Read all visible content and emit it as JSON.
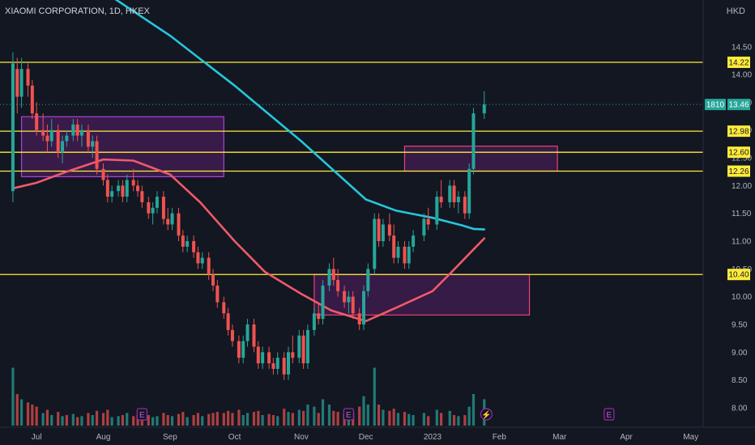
{
  "header": {
    "title": "XIAOMI CORPORATION, 1D, HKEX",
    "currency": "HKD"
  },
  "chart_data": {
    "type": "candlestick",
    "ylim": [
      7.65,
      15.05
    ],
    "y_ticks": [
      "14.50",
      "14.00",
      "13.50",
      "13.00",
      "12.50",
      "12.00",
      "11.50",
      "11.00",
      "10.50",
      "10.00",
      "9.50",
      "9.00",
      "8.50",
      "8.00"
    ],
    "x_ticks": [
      "Jul",
      "Aug",
      "Sep",
      "Oct",
      "Nov",
      "Dec",
      "2023",
      "Feb",
      "Mar",
      "Apr",
      "May"
    ],
    "horizontal_levels": [
      {
        "value": 14.22,
        "label": "14.22"
      },
      {
        "value": 12.98,
        "label": "12.98"
      },
      {
        "value": 12.6,
        "label": "12.60"
      },
      {
        "value": 12.26,
        "label": "12.26"
      },
      {
        "value": 10.4,
        "label": "10.40"
      }
    ],
    "last_price": {
      "value": 13.46,
      "label": "13.46",
      "countdown": "1810"
    },
    "zones": [
      {
        "from": "2022-06-24",
        "to": "2022-09-26",
        "high": 13.24,
        "low": 12.16,
        "color": "purple"
      },
      {
        "from": "2022-11-07",
        "to": "2023-02-15",
        "high": 10.4,
        "low": 9.67,
        "color": "pink"
      },
      {
        "from": "2022-12-19",
        "to": "2023-02-28",
        "high": 12.71,
        "low": 12.26,
        "color": "pink"
      }
    ],
    "moving_averages": [
      {
        "color": "#26c6da",
        "points": [
          [
            "2022-07-01",
            16.3
          ],
          [
            "2022-08-01",
            15.5
          ],
          [
            "2022-09-01",
            14.7
          ],
          [
            "2022-10-01",
            13.8
          ],
          [
            "2022-11-01",
            12.8
          ],
          [
            "2022-12-01",
            11.75
          ],
          [
            "2022-12-15",
            11.55
          ],
          [
            "2023-01-01",
            11.42
          ],
          [
            "2023-01-15",
            11.28
          ],
          [
            "2023-01-20",
            11.22
          ],
          [
            "2023-01-25",
            11.21
          ]
        ]
      },
      {
        "color": "#f05a6a",
        "points": [
          [
            "2022-06-20",
            11.95
          ],
          [
            "2022-07-01",
            12.05
          ],
          [
            "2022-07-15",
            12.25
          ],
          [
            "2022-08-01",
            12.47
          ],
          [
            "2022-08-15",
            12.45
          ],
          [
            "2022-09-01",
            12.2
          ],
          [
            "2022-09-15",
            11.7
          ],
          [
            "2022-10-01",
            11.0
          ],
          [
            "2022-10-15",
            10.45
          ],
          [
            "2022-11-01",
            10.05
          ],
          [
            "2022-11-15",
            9.75
          ],
          [
            "2022-12-01",
            9.56
          ],
          [
            "2022-12-15",
            9.8
          ],
          [
            "2023-01-01",
            10.1
          ],
          [
            "2023-01-10",
            10.45
          ],
          [
            "2023-01-20",
            10.85
          ],
          [
            "2023-01-25",
            11.05
          ]
        ]
      }
    ],
    "candles": [
      [
        "2022-06-20",
        11.9,
        14.4,
        11.7,
        14.2
      ],
      [
        "2022-06-22",
        14.1,
        14.3,
        13.3,
        13.6
      ],
      [
        "2022-06-24",
        13.6,
        14.3,
        13.4,
        14.1
      ],
      [
        "2022-06-27",
        14.1,
        14.2,
        13.6,
        13.8
      ],
      [
        "2022-06-29",
        13.8,
        13.9,
        13.2,
        13.3
      ],
      [
        "2022-07-01",
        13.3,
        13.5,
        12.9,
        13.0
      ],
      [
        "2022-07-04",
        13.0,
        13.3,
        12.8,
        12.9
      ],
      [
        "2022-07-06",
        12.9,
        13.1,
        12.6,
        12.8
      ],
      [
        "2022-07-08",
        12.8,
        13.2,
        12.7,
        13.0
      ],
      [
        "2022-07-11",
        13.0,
        13.1,
        12.5,
        12.6
      ],
      [
        "2022-07-13",
        12.6,
        12.9,
        12.4,
        12.8
      ],
      [
        "2022-07-15",
        12.8,
        13.0,
        12.7,
        12.9
      ],
      [
        "2022-07-18",
        12.9,
        13.2,
        12.8,
        13.1
      ],
      [
        "2022-07-20",
        13.1,
        13.2,
        12.8,
        12.9
      ],
      [
        "2022-07-22",
        12.9,
        13.1,
        12.7,
        13.0
      ],
      [
        "2022-07-25",
        13.0,
        13.1,
        12.6,
        12.7
      ],
      [
        "2022-07-27",
        12.7,
        12.9,
        12.5,
        12.8
      ],
      [
        "2022-07-29",
        12.8,
        12.9,
        12.2,
        12.3
      ],
      [
        "2022-08-01",
        12.3,
        12.4,
        12.0,
        12.1
      ],
      [
        "2022-08-03",
        12.1,
        12.2,
        11.7,
        11.8
      ],
      [
        "2022-08-05",
        11.8,
        12.0,
        11.7,
        11.9
      ],
      [
        "2022-08-08",
        11.9,
        12.1,
        11.8,
        12.0
      ],
      [
        "2022-08-10",
        12.0,
        12.1,
        11.7,
        11.8
      ],
      [
        "2022-08-12",
        11.8,
        12.2,
        11.7,
        12.1
      ],
      [
        "2022-08-15",
        12.1,
        12.3,
        11.9,
        12.0
      ],
      [
        "2022-08-17",
        12.0,
        12.1,
        11.8,
        11.9
      ],
      [
        "2022-08-19",
        11.9,
        12.0,
        11.6,
        11.7
      ],
      [
        "2022-08-22",
        11.7,
        11.8,
        11.4,
        11.5
      ],
      [
        "2022-08-24",
        11.5,
        11.7,
        11.3,
        11.6
      ],
      [
        "2022-08-26",
        11.6,
        11.9,
        11.5,
        11.8
      ],
      [
        "2022-08-29",
        11.8,
        11.9,
        11.3,
        11.4
      ],
      [
        "2022-08-31",
        11.4,
        11.6,
        11.2,
        11.3
      ],
      [
        "2022-09-02",
        11.3,
        11.6,
        11.2,
        11.5
      ],
      [
        "2022-09-05",
        11.5,
        11.6,
        11.0,
        11.1
      ],
      [
        "2022-09-07",
        11.1,
        11.2,
        10.8,
        10.9
      ],
      [
        "2022-09-09",
        10.9,
        11.1,
        10.8,
        11.0
      ],
      [
        "2022-09-12",
        11.0,
        11.1,
        10.7,
        10.8
      ],
      [
        "2022-09-14",
        10.8,
        10.9,
        10.5,
        10.6
      ],
      [
        "2022-09-16",
        10.6,
        10.8,
        10.5,
        10.7
      ],
      [
        "2022-09-19",
        10.7,
        10.8,
        10.3,
        10.4
      ],
      [
        "2022-09-21",
        10.4,
        10.5,
        10.1,
        10.2
      ],
      [
        "2022-09-23",
        10.2,
        10.3,
        9.8,
        9.9
      ],
      [
        "2022-09-26",
        9.9,
        10.0,
        9.6,
        9.7
      ],
      [
        "2022-09-28",
        9.7,
        9.8,
        9.3,
        9.4
      ],
      [
        "2022-09-30",
        9.4,
        9.5,
        9.1,
        9.2
      ],
      [
        "2022-10-03",
        9.2,
        9.3,
        8.8,
        8.9
      ],
      [
        "2022-10-05",
        8.9,
        9.3,
        8.8,
        9.2
      ],
      [
        "2022-10-07",
        9.2,
        9.6,
        9.1,
        9.5
      ],
      [
        "2022-10-10",
        9.5,
        9.6,
        9.0,
        9.1
      ],
      [
        "2022-10-12",
        9.1,
        9.2,
        8.7,
        8.8
      ],
      [
        "2022-10-14",
        8.8,
        9.1,
        8.7,
        9.0
      ],
      [
        "2022-10-17",
        9.0,
        9.1,
        8.7,
        8.8
      ],
      [
        "2022-10-19",
        8.8,
        8.9,
        8.6,
        8.7
      ],
      [
        "2022-10-21",
        8.7,
        9.0,
        8.6,
        8.9
      ],
      [
        "2022-10-24",
        8.9,
        9.0,
        8.5,
        8.6
      ],
      [
        "2022-10-26",
        8.6,
        9.1,
        8.5,
        9.0
      ],
      [
        "2022-10-28",
        9.0,
        9.3,
        8.8,
        8.9
      ],
      [
        "2022-10-31",
        8.9,
        9.4,
        8.8,
        9.3
      ],
      [
        "2022-11-02",
        9.3,
        9.4,
        8.7,
        8.8
      ],
      [
        "2022-11-04",
        8.8,
        9.5,
        8.7,
        9.4
      ],
      [
        "2022-11-07",
        9.4,
        9.8,
        9.3,
        9.7
      ],
      [
        "2022-11-09",
        9.7,
        9.9,
        9.5,
        9.6
      ],
      [
        "2022-11-11",
        9.6,
        10.3,
        9.5,
        10.2
      ],
      [
        "2022-11-14",
        10.2,
        10.6,
        10.1,
        10.5
      ],
      [
        "2022-11-16",
        10.5,
        10.7,
        10.2,
        10.3
      ],
      [
        "2022-11-18",
        10.3,
        10.5,
        10.0,
        10.1
      ],
      [
        "2022-11-21",
        10.1,
        10.2,
        9.8,
        9.9
      ],
      [
        "2022-11-23",
        9.9,
        10.1,
        9.7,
        10.0
      ],
      [
        "2022-11-25",
        10.0,
        10.1,
        9.6,
        9.7
      ],
      [
        "2022-11-28",
        9.7,
        9.8,
        9.4,
        9.5
      ],
      [
        "2022-11-30",
        9.5,
        10.2,
        9.4,
        10.1
      ],
      [
        "2022-12-02",
        10.1,
        10.6,
        10.0,
        10.5
      ],
      [
        "2022-12-05",
        10.5,
        11.5,
        10.4,
        11.4
      ],
      [
        "2022-12-07",
        11.4,
        11.5,
        10.9,
        11.0
      ],
      [
        "2022-12-09",
        11.0,
        11.4,
        10.9,
        11.3
      ],
      [
        "2022-12-12",
        11.3,
        11.5,
        11.0,
        11.1
      ],
      [
        "2022-12-14",
        11.1,
        11.3,
        10.6,
        10.7
      ],
      [
        "2022-12-16",
        10.7,
        11.0,
        10.6,
        10.9
      ],
      [
        "2022-12-19",
        10.9,
        11.0,
        10.5,
        10.6
      ],
      [
        "2022-12-21",
        10.6,
        11.0,
        10.5,
        10.9
      ],
      [
        "2022-12-23",
        10.9,
        11.2,
        10.8,
        11.1
      ],
      [
        "2022-12-28",
        11.1,
        11.5,
        11.0,
        11.4
      ],
      [
        "2022-12-30",
        11.4,
        11.6,
        11.2,
        11.3
      ],
      [
        "2023-01-03",
        11.3,
        11.9,
        11.2,
        11.8
      ],
      [
        "2023-01-05",
        11.8,
        12.1,
        11.6,
        11.7
      ],
      [
        "2023-01-09",
        11.7,
        12.1,
        11.6,
        12.0
      ],
      [
        "2023-01-11",
        12.0,
        12.1,
        11.6,
        11.7
      ],
      [
        "2023-01-13",
        11.7,
        11.9,
        11.5,
        11.8
      ],
      [
        "2023-01-16",
        11.8,
        11.9,
        11.4,
        11.5
      ],
      [
        "2023-01-18",
        11.5,
        12.4,
        11.4,
        12.3
      ],
      [
        "2023-01-20",
        12.3,
        13.4,
        12.2,
        13.3
      ],
      [
        "2023-01-25",
        13.3,
        13.7,
        13.2,
        13.46
      ]
    ],
    "volume_bars": [
      [
        "2022-06-20",
        0.55,
        "up"
      ],
      [
        "2022-06-22",
        0.3,
        "down"
      ],
      [
        "2022-06-24",
        0.25,
        "up"
      ],
      [
        "2022-06-27",
        0.22,
        "down"
      ],
      [
        "2022-06-29",
        0.2,
        "down"
      ],
      [
        "2022-07-01",
        0.18,
        "down"
      ],
      [
        "2022-07-04",
        0.12,
        "up"
      ],
      [
        "2022-07-06",
        0.15,
        "down"
      ],
      [
        "2022-07-08",
        0.1,
        "up"
      ],
      [
        "2022-07-11",
        0.13,
        "down"
      ],
      [
        "2022-07-13",
        0.09,
        "up"
      ],
      [
        "2022-07-15",
        0.1,
        "down"
      ],
      [
        "2022-07-18",
        0.11,
        "up"
      ],
      [
        "2022-07-20",
        0.08,
        "down"
      ],
      [
        "2022-07-22",
        0.09,
        "up"
      ],
      [
        "2022-07-25",
        0.12,
        "down"
      ],
      [
        "2022-07-27",
        0.1,
        "up"
      ],
      [
        "2022-07-29",
        0.14,
        "down"
      ],
      [
        "2022-08-01",
        0.12,
        "down"
      ],
      [
        "2022-08-03",
        0.15,
        "down"
      ],
      [
        "2022-08-05",
        0.08,
        "up"
      ],
      [
        "2022-08-08",
        0.09,
        "up"
      ],
      [
        "2022-08-10",
        0.1,
        "down"
      ],
      [
        "2022-08-12",
        0.12,
        "up"
      ],
      [
        "2022-08-15",
        0.09,
        "down"
      ],
      [
        "2022-08-17",
        0.1,
        "down"
      ],
      [
        "2022-08-19",
        0.11,
        "down"
      ],
      [
        "2022-08-22",
        0.1,
        "down"
      ],
      [
        "2022-08-24",
        0.08,
        "up"
      ],
      [
        "2022-08-26",
        0.09,
        "up"
      ],
      [
        "2022-08-29",
        0.12,
        "down"
      ],
      [
        "2022-08-31",
        0.1,
        "down"
      ],
      [
        "2022-09-02",
        0.09,
        "up"
      ],
      [
        "2022-09-05",
        0.11,
        "down"
      ],
      [
        "2022-09-07",
        0.13,
        "down"
      ],
      [
        "2022-09-09",
        0.08,
        "up"
      ],
      [
        "2022-09-12",
        0.1,
        "down"
      ],
      [
        "2022-09-14",
        0.12,
        "down"
      ],
      [
        "2022-09-16",
        0.09,
        "up"
      ],
      [
        "2022-09-19",
        0.11,
        "down"
      ],
      [
        "2022-09-21",
        0.12,
        "down"
      ],
      [
        "2022-09-23",
        0.13,
        "down"
      ],
      [
        "2022-09-26",
        0.12,
        "down"
      ],
      [
        "2022-09-28",
        0.14,
        "down"
      ],
      [
        "2022-09-30",
        0.12,
        "down"
      ],
      [
        "2022-10-03",
        0.15,
        "down"
      ],
      [
        "2022-10-05",
        0.1,
        "up"
      ],
      [
        "2022-10-07",
        0.12,
        "up"
      ],
      [
        "2022-10-10",
        0.13,
        "down"
      ],
      [
        "2022-10-12",
        0.14,
        "down"
      ],
      [
        "2022-10-14",
        0.1,
        "up"
      ],
      [
        "2022-10-17",
        0.11,
        "down"
      ],
      [
        "2022-10-19",
        0.1,
        "down"
      ],
      [
        "2022-10-21",
        0.09,
        "up"
      ],
      [
        "2022-10-24",
        0.16,
        "down"
      ],
      [
        "2022-10-26",
        0.13,
        "up"
      ],
      [
        "2022-10-28",
        0.12,
        "down"
      ],
      [
        "2022-10-31",
        0.15,
        "up"
      ],
      [
        "2022-11-02",
        0.14,
        "down"
      ],
      [
        "2022-11-04",
        0.2,
        "up"
      ],
      [
        "2022-11-07",
        0.18,
        "up"
      ],
      [
        "2022-11-09",
        0.12,
        "down"
      ],
      [
        "2022-11-11",
        0.25,
        "up"
      ],
      [
        "2022-11-14",
        0.2,
        "up"
      ],
      [
        "2022-11-16",
        0.14,
        "down"
      ],
      [
        "2022-11-18",
        0.13,
        "down"
      ],
      [
        "2022-11-21",
        0.11,
        "down"
      ],
      [
        "2022-11-23",
        0.1,
        "up"
      ],
      [
        "2022-11-25",
        0.12,
        "down"
      ],
      [
        "2022-11-28",
        0.18,
        "down"
      ],
      [
        "2022-11-30",
        0.28,
        "up"
      ],
      [
        "2022-12-02",
        0.2,
        "up"
      ],
      [
        "2022-12-05",
        0.55,
        "up"
      ],
      [
        "2022-12-07",
        0.2,
        "down"
      ],
      [
        "2022-12-09",
        0.15,
        "up"
      ],
      [
        "2022-12-12",
        0.14,
        "down"
      ],
      [
        "2022-12-14",
        0.16,
        "down"
      ],
      [
        "2022-12-16",
        0.12,
        "up"
      ],
      [
        "2022-12-19",
        0.13,
        "down"
      ],
      [
        "2022-12-21",
        0.11,
        "up"
      ],
      [
        "2022-12-23",
        0.1,
        "up"
      ],
      [
        "2022-12-28",
        0.12,
        "up"
      ],
      [
        "2022-12-30",
        0.09,
        "down"
      ],
      [
        "2023-01-03",
        0.15,
        "up"
      ],
      [
        "2023-01-05",
        0.12,
        "down"
      ],
      [
        "2023-01-09",
        0.14,
        "up"
      ],
      [
        "2023-01-11",
        0.1,
        "down"
      ],
      [
        "2023-01-13",
        0.09,
        "up"
      ],
      [
        "2023-01-16",
        0.1,
        "down"
      ],
      [
        "2023-01-18",
        0.18,
        "up"
      ],
      [
        "2023-01-20",
        0.3,
        "up"
      ],
      [
        "2023-01-25",
        0.25,
        "up"
      ]
    ],
    "event_markers": [
      {
        "date": "2022-08-19",
        "symbol": "E"
      },
      {
        "date": "2022-11-23",
        "symbol": "E"
      },
      {
        "date": "2023-01-26",
        "symbol": "⚡"
      },
      {
        "date": "2023-03-24",
        "symbol": "E"
      }
    ],
    "colors": {
      "up": "#26a69a",
      "down": "#ef5350",
      "level": "#ffeb3b",
      "background": "#131722"
    }
  }
}
